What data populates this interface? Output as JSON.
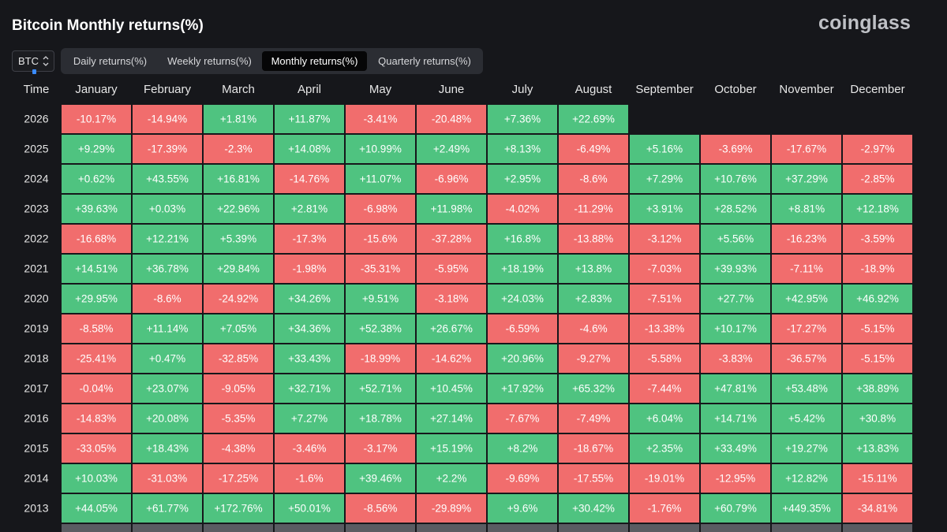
{
  "header": {
    "title": "Bitcoin Monthly returns(%)",
    "brand": "coinglass"
  },
  "controls": {
    "asset_selector": {
      "value": "BTC",
      "icon": "chevron-updown-icon"
    },
    "tabs": [
      {
        "label": "Daily returns(%)",
        "active": false
      },
      {
        "label": "Weekly returns(%)",
        "active": false
      },
      {
        "label": "Monthly returns(%)",
        "active": true
      },
      {
        "label": "Quarterly returns(%)",
        "active": false
      }
    ]
  },
  "colors": {
    "positive": "#4fc380",
    "negative": "#f16d6d",
    "row_label": "#e6e6e6",
    "cell_text": "#ffffff"
  },
  "chart_data": {
    "type": "heatmap",
    "title": "Bitcoin Monthly returns(%)",
    "corner_label": "Time",
    "columns": [
      "January",
      "February",
      "March",
      "April",
      "May",
      "June",
      "July",
      "August",
      "September",
      "October",
      "November",
      "December"
    ],
    "rows": [
      {
        "year": "2026",
        "values": [
          "-10.17%",
          "-14.94%",
          "+1.81%",
          "+11.87%",
          "-3.41%",
          "-20.48%",
          "+7.36%",
          "+22.69%",
          null,
          null,
          null,
          null
        ]
      },
      {
        "year": "2025",
        "values": [
          "+9.29%",
          "-17.39%",
          "-2.3%",
          "+14.08%",
          "+10.99%",
          "+2.49%",
          "+8.13%",
          "-6.49%",
          "+5.16%",
          "-3.69%",
          "-17.67%",
          "-2.97%"
        ]
      },
      {
        "year": "2024",
        "values": [
          "+0.62%",
          "+43.55%",
          "+16.81%",
          "-14.76%",
          "+11.07%",
          "-6.96%",
          "+2.95%",
          "-8.6%",
          "+7.29%",
          "+10.76%",
          "+37.29%",
          "-2.85%"
        ]
      },
      {
        "year": "2023",
        "values": [
          "+39.63%",
          "+0.03%",
          "+22.96%",
          "+2.81%",
          "-6.98%",
          "+11.98%",
          "-4.02%",
          "-11.29%",
          "+3.91%",
          "+28.52%",
          "+8.81%",
          "+12.18%"
        ]
      },
      {
        "year": "2022",
        "values": [
          "-16.68%",
          "+12.21%",
          "+5.39%",
          "-17.3%",
          "-15.6%",
          "-37.28%",
          "+16.8%",
          "-13.88%",
          "-3.12%",
          "+5.56%",
          "-16.23%",
          "-3.59%"
        ]
      },
      {
        "year": "2021",
        "values": [
          "+14.51%",
          "+36.78%",
          "+29.84%",
          "-1.98%",
          "-35.31%",
          "-5.95%",
          "+18.19%",
          "+13.8%",
          "-7.03%",
          "+39.93%",
          "-7.11%",
          "-18.9%"
        ]
      },
      {
        "year": "2020",
        "values": [
          "+29.95%",
          "-8.6%",
          "-24.92%",
          "+34.26%",
          "+9.51%",
          "-3.18%",
          "+24.03%",
          "+2.83%",
          "-7.51%",
          "+27.7%",
          "+42.95%",
          "+46.92%"
        ]
      },
      {
        "year": "2019",
        "values": [
          "-8.58%",
          "+11.14%",
          "+7.05%",
          "+34.36%",
          "+52.38%",
          "+26.67%",
          "-6.59%",
          "-4.6%",
          "-13.38%",
          "+10.17%",
          "-17.27%",
          "-5.15%"
        ]
      },
      {
        "year": "2018",
        "values": [
          "-25.41%",
          "+0.47%",
          "-32.85%",
          "+33.43%",
          "-18.99%",
          "-14.62%",
          "+20.96%",
          "-9.27%",
          "-5.58%",
          "-3.83%",
          "-36.57%",
          "-5.15%"
        ]
      },
      {
        "year": "2017",
        "values": [
          "-0.04%",
          "+23.07%",
          "-9.05%",
          "+32.71%",
          "+52.71%",
          "+10.45%",
          "+17.92%",
          "+65.32%",
          "-7.44%",
          "+47.81%",
          "+53.48%",
          "+38.89%"
        ]
      },
      {
        "year": "2016",
        "values": [
          "-14.83%",
          "+20.08%",
          "-5.35%",
          "+7.27%",
          "+18.78%",
          "+27.14%",
          "-7.67%",
          "-7.49%",
          "+6.04%",
          "+14.71%",
          "+5.42%",
          "+30.8%"
        ]
      },
      {
        "year": "2015",
        "values": [
          "-33.05%",
          "+18.43%",
          "-4.38%",
          "-3.46%",
          "-3.17%",
          "+15.19%",
          "+8.2%",
          "-18.67%",
          "+2.35%",
          "+33.49%",
          "+19.27%",
          "+13.83%"
        ]
      },
      {
        "year": "2014",
        "values": [
          "+10.03%",
          "-31.03%",
          "-17.25%",
          "-1.6%",
          "+39.46%",
          "+2.2%",
          "-9.69%",
          "-17.55%",
          "-19.01%",
          "-12.95%",
          "+12.82%",
          "-15.11%"
        ]
      },
      {
        "year": "2013",
        "values": [
          "+44.05%",
          "+61.77%",
          "+172.76%",
          "+50.01%",
          "-8.56%",
          "-29.89%",
          "+9.6%",
          "+30.42%",
          "-1.76%",
          "+60.79%",
          "+449.35%",
          "-34.81%"
        ]
      }
    ]
  }
}
